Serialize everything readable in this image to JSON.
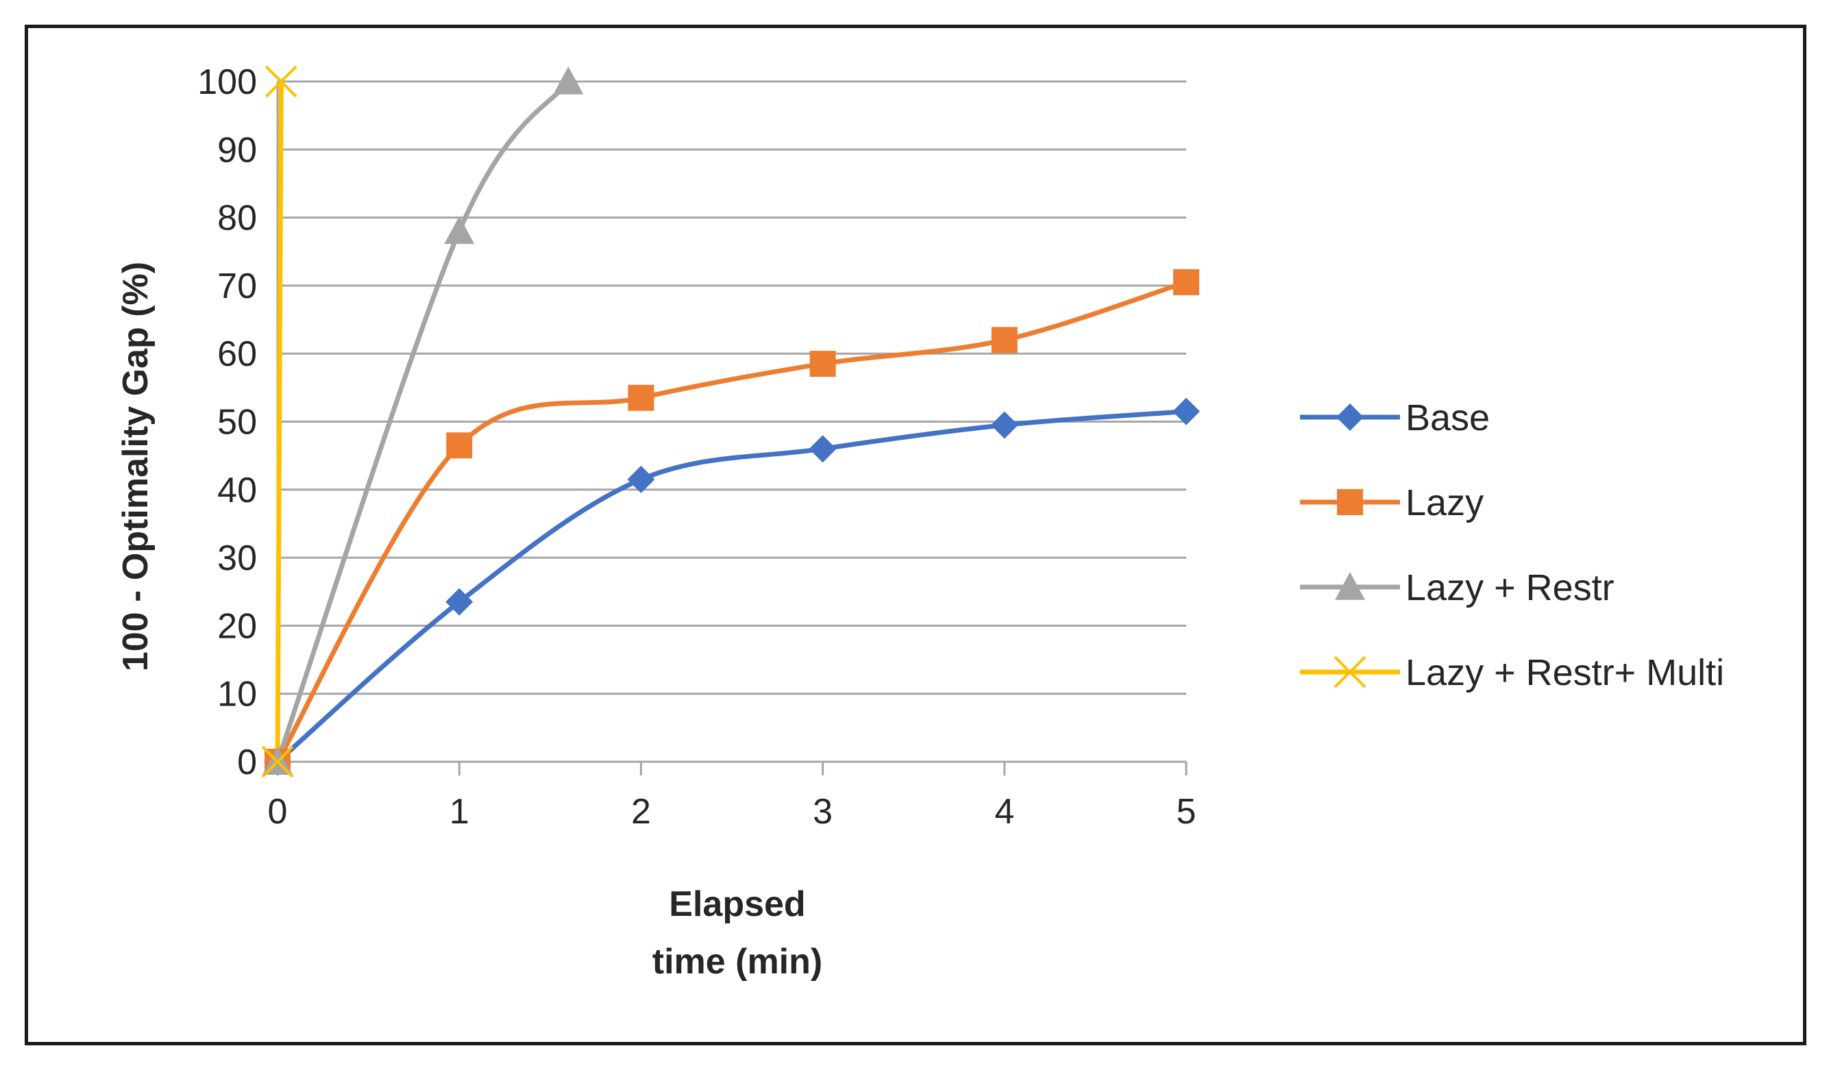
{
  "chart_data": {
    "type": "line",
    "title": "",
    "xlabel": "Elapsed time (min)",
    "xlabel_lines": [
      "Elapsed",
      "time (min)"
    ],
    "ylabel": "100 - Optimality Gap  (%)",
    "xlim": [
      0,
      5
    ],
    "ylim": [
      0,
      100
    ],
    "xticks": [
      "0",
      "1",
      "2",
      "3",
      "4",
      "5"
    ],
    "yticks": [
      "0",
      "10",
      "20",
      "30",
      "40",
      "50",
      "60",
      "70",
      "80",
      "90",
      "100"
    ],
    "grid": "horizontal",
    "legend_position": "right",
    "series": [
      {
        "name": "Base",
        "color": "#4472C4",
        "marker": "diamond",
        "x": [
          0,
          1,
          2,
          3,
          4,
          5
        ],
        "y": [
          0,
          23.5,
          41.5,
          46,
          49.5,
          51.5
        ]
      },
      {
        "name": "Lazy",
        "color": "#ED7D31",
        "marker": "square",
        "x": [
          0,
          1,
          2,
          3,
          4,
          5
        ],
        "y": [
          0,
          46.5,
          53.5,
          58.5,
          62,
          70.5
        ]
      },
      {
        "name": "Lazy + Restr",
        "color": "#A5A5A5",
        "marker": "triangle",
        "x": [
          0,
          1,
          1.6
        ],
        "y": [
          0,
          78,
          100
        ]
      },
      {
        "name": "Lazy + Restr+ Multi",
        "color": "#FFC000",
        "marker": "x",
        "x": [
          0,
          0.02
        ],
        "y": [
          0,
          100
        ]
      }
    ]
  }
}
